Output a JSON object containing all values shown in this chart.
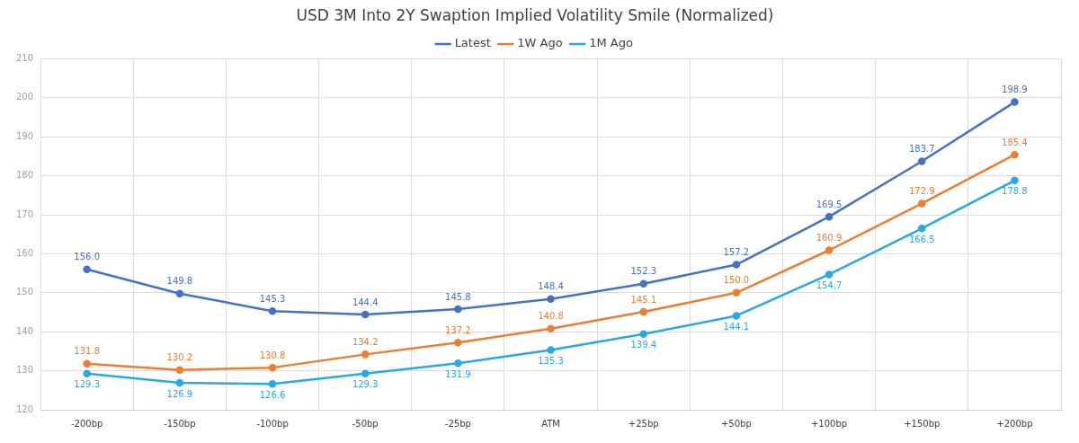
{
  "chart_data": {
    "type": "line",
    "title": "USD 3M Into 2Y Swaption Implied Volatility Smile (Normalized)",
    "categories": [
      "-200bp",
      "-150bp",
      "-100bp",
      "-50bp",
      "-25bp",
      "ATM",
      "+25bp",
      "+50bp",
      "+100bp",
      "+150bp",
      "+200bp"
    ],
    "series": [
      {
        "name": "Latest",
        "color": "#4472c4",
        "values": [
          156.0,
          149.8,
          145.3,
          144.4,
          145.8,
          148.4,
          152.3,
          157.2,
          169.5,
          183.7,
          198.9
        ],
        "value_labels": [
          "156.0",
          "149.8",
          "145.3",
          "144.4",
          "145.8",
          "148.4",
          "152.3",
          "157.2",
          "169.5",
          "183.7",
          "198.9"
        ]
      },
      {
        "name": "1W Ago",
        "color": "#ed7d31",
        "values": [
          131.8,
          130.2,
          130.8,
          134.2,
          137.2,
          140.8,
          145.1,
          150.0,
          160.9,
          172.9,
          185.4
        ],
        "value_labels": [
          "131.8",
          "130.2",
          "130.8",
          "134.2",
          "137.2",
          "140.8",
          "145.1",
          "150.0",
          "160.9",
          "172.9",
          "185.4"
        ]
      },
      {
        "name": "1M Ago",
        "color": "#27a9e9",
        "values": [
          129.3,
          126.9,
          126.6,
          129.3,
          131.9,
          135.3,
          139.4,
          144.1,
          154.7,
          166.5,
          178.8
        ],
        "value_labels": [
          "129.3",
          "126.9",
          "126.6",
          "129.3",
          "131.9",
          "135.3",
          "139.4",
          "144.1",
          "154.7",
          "166.5",
          "178.8"
        ]
      }
    ],
    "ylim": [
      120,
      210
    ],
    "yticks": [
      120,
      130,
      140,
      150,
      160,
      170,
      180,
      190,
      200,
      210
    ],
    "grid": true,
    "legend": "top",
    "marker": "circle",
    "line_style": "solid"
  }
}
